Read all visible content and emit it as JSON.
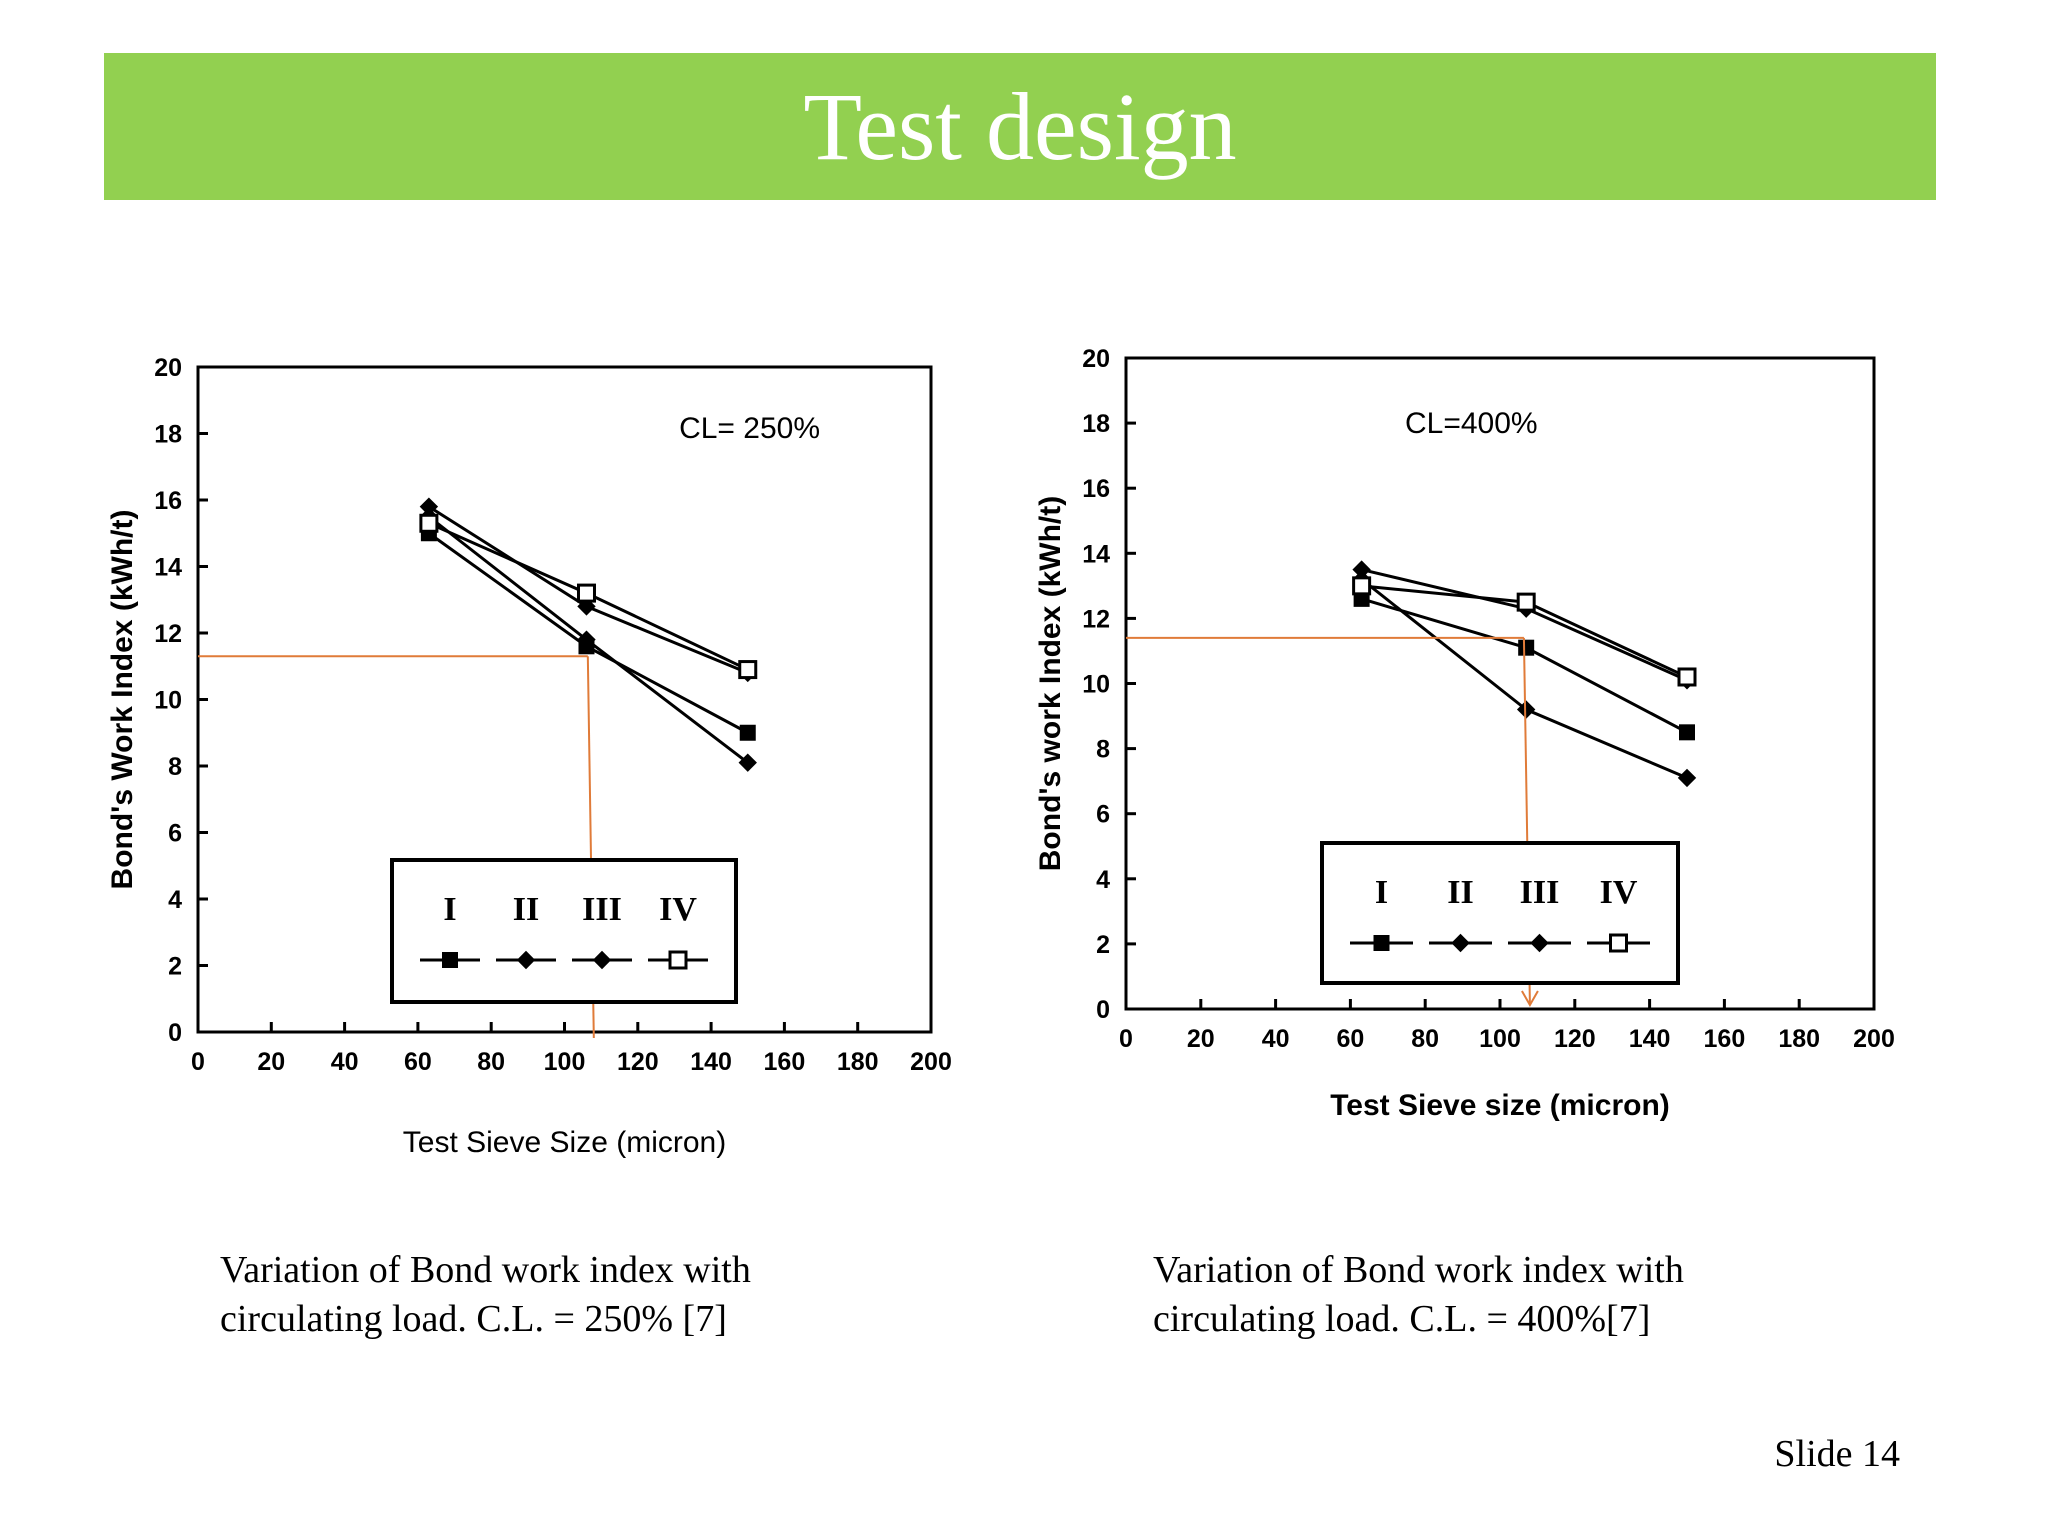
{
  "slide": {
    "title": "Test design",
    "slide_number": "Slide 14",
    "captions": [
      [
        "Variation of Bond work index with",
        "circulating load. C.L. = 250% [7]"
      ],
      [
        "Variation of Bond work index with",
        "circulating load. C.L. = 400%[7]"
      ]
    ]
  },
  "colors": {
    "title_bar": "#92d050",
    "title_text": "#ffffff",
    "guide_line": "#e07b39"
  },
  "chart_data": [
    {
      "type": "line",
      "annotation": "CL= 250%",
      "xlabel": "Test Sieve Size (micron)",
      "ylabel": "Bond's Work Index (kWh/t)",
      "xlim": [
        0,
        200
      ],
      "ylim": [
        0,
        20
      ],
      "x_ticks": [
        "0",
        "20",
        "40",
        "60",
        "80",
        "100",
        "120",
        "140",
        "160",
        "180",
        "200"
      ],
      "y_ticks": [
        "0",
        "2",
        "4",
        "6",
        "8",
        "10",
        "12",
        "14",
        "16",
        "18",
        "20"
      ],
      "legend": {
        "labels": [
          "I",
          "II",
          "III",
          "IV"
        ],
        "placement": "bottom-center"
      },
      "series": [
        {
          "name": "I",
          "marker": "square-filled",
          "points": [
            [
              63,
              15.0
            ],
            [
              106,
              11.6
            ],
            [
              150,
              9.0
            ]
          ]
        },
        {
          "name": "II",
          "marker": "diamond",
          "points": [
            [
              63,
              15.8
            ],
            [
              106,
              12.8
            ],
            [
              150,
              10.8
            ]
          ]
        },
        {
          "name": "III",
          "marker": "diamond",
          "points": [
            [
              63,
              15.5
            ],
            [
              106,
              11.8
            ],
            [
              150,
              8.1
            ]
          ]
        },
        {
          "name": "IV",
          "marker": "square-open",
          "points": [
            [
              63,
              15.3
            ],
            [
              106,
              13.2
            ],
            [
              150,
              10.9
            ]
          ]
        }
      ],
      "guide": {
        "x": 108,
        "y": 11.3
      }
    },
    {
      "type": "line",
      "annotation": "CL=400%",
      "xlabel": "Test Sieve size (micron)",
      "ylabel": "Bond's work Index (kWh/t)",
      "xlim": [
        0,
        200
      ],
      "ylim": [
        0,
        20
      ],
      "x_ticks": [
        "0",
        "20",
        "40",
        "60",
        "80",
        "100",
        "120",
        "140",
        "160",
        "180",
        "200"
      ],
      "y_ticks": [
        "0",
        "2",
        "4",
        "6",
        "8",
        "10",
        "12",
        "14",
        "16",
        "18",
        "20"
      ],
      "legend": {
        "labels": [
          "I",
          "II",
          "III",
          "IV"
        ],
        "placement": "bottom-center"
      },
      "series": [
        {
          "name": "I",
          "marker": "square-filled",
          "points": [
            [
              63,
              12.6
            ],
            [
              107,
              11.1
            ],
            [
              150,
              8.5
            ]
          ]
        },
        {
          "name": "II",
          "marker": "diamond",
          "points": [
            [
              63,
              13.2
            ],
            [
              107,
              9.2
            ],
            [
              150,
              7.1
            ]
          ]
        },
        {
          "name": "III",
          "marker": "diamond",
          "points": [
            [
              63,
              13.5
            ],
            [
              107,
              12.3
            ],
            [
              150,
              10.1
            ]
          ]
        },
        {
          "name": "IV",
          "marker": "square-open",
          "points": [
            [
              63,
              13.0
            ],
            [
              107,
              12.5
            ],
            [
              150,
              10.2
            ]
          ]
        }
      ],
      "guide": {
        "x": 108,
        "y": 11.4
      }
    }
  ]
}
